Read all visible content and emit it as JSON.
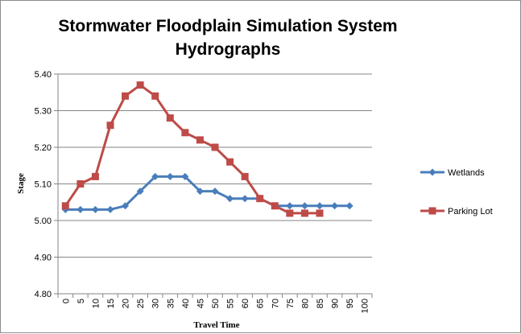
{
  "chart_data": {
    "type": "line",
    "title": "Stormwater Floodplain Simulation System Hydrographs",
    "title_lines": [
      "Stormwater Floodplain Simulation System",
      "Hydrographs"
    ],
    "xlabel": "Travel Time",
    "ylabel": "Stage",
    "categories": [
      "0",
      "5",
      "10",
      "15",
      "20",
      "25",
      "30",
      "35",
      "40",
      "45",
      "50",
      "55",
      "60",
      "65",
      "70",
      "75",
      "80",
      "85",
      "90",
      "95",
      "100"
    ],
    "y_ticks": [
      "4.80",
      "4.90",
      "5.00",
      "5.10",
      "5.20",
      "5.30",
      "5.40"
    ],
    "ylim": [
      4.8,
      5.4
    ],
    "grid": true,
    "legend_position": "right",
    "series": [
      {
        "name": "Wetlands",
        "color": "#4a7ebb",
        "marker": "diamond",
        "values": [
          5.03,
          5.03,
          5.03,
          5.03,
          5.04,
          5.08,
          5.12,
          5.12,
          5.12,
          5.08,
          5.08,
          5.06,
          5.06,
          5.06,
          5.04,
          5.04,
          5.04,
          5.04,
          5.04,
          5.04,
          null
        ]
      },
      {
        "name": "Parking Lot",
        "color": "#be4b48",
        "marker": "square",
        "values": [
          5.04,
          5.1,
          5.12,
          5.26,
          5.34,
          5.37,
          5.34,
          5.28,
          5.24,
          5.22,
          5.2,
          5.16,
          5.12,
          5.06,
          5.04,
          5.02,
          5.02,
          5.02,
          null,
          null,
          null
        ]
      }
    ]
  }
}
